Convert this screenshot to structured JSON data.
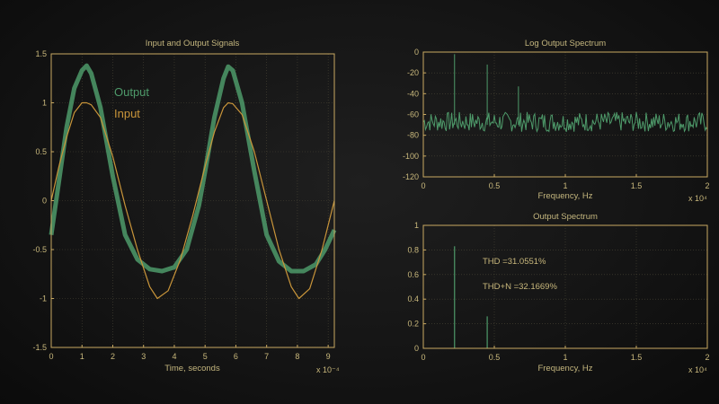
{
  "chart_data": [
    {
      "id": "signals",
      "type": "line",
      "title": "Input and Output Signals",
      "xlabel": "Time, seconds",
      "x_multiplier": "x 10⁻⁴",
      "xlim": [
        0,
        9.2
      ],
      "ylim": [
        -1.5,
        1.5
      ],
      "x_ticks": [
        "0",
        "1",
        "2",
        "3",
        "4",
        "5",
        "6",
        "7",
        "8",
        "9"
      ],
      "y_ticks": [
        "1.5",
        "1",
        "0.5",
        "0",
        "-0.5",
        "-1",
        "-1.5"
      ],
      "grid": true,
      "legend": "upper-left",
      "series": [
        {
          "name": "Output",
          "color": "#4e9a6a",
          "x": [
            0,
            0.25,
            0.5,
            0.75,
            1.0,
            1.15,
            1.3,
            1.6,
            2.0,
            2.4,
            2.8,
            3.2,
            3.6,
            4.0,
            4.4,
            4.8,
            5.0,
            5.3,
            5.6,
            5.75,
            5.9,
            6.2,
            6.6,
            7.0,
            7.4,
            7.8,
            8.2,
            8.6,
            8.9,
            9.2
          ],
          "y": [
            -0.35,
            0.2,
            0.75,
            1.15,
            1.33,
            1.38,
            1.3,
            0.95,
            0.25,
            -0.35,
            -0.6,
            -0.7,
            -0.72,
            -0.68,
            -0.5,
            -0.05,
            0.3,
            0.85,
            1.25,
            1.37,
            1.33,
            1.0,
            0.3,
            -0.35,
            -0.62,
            -0.72,
            -0.72,
            -0.65,
            -0.5,
            -0.3
          ]
        },
        {
          "name": "Input",
          "color": "#c9953a",
          "x": [
            0,
            0.25,
            0.5,
            0.75,
            1.0,
            1.15,
            1.3,
            1.6,
            2.0,
            2.4,
            2.8,
            3.2,
            3.45,
            3.8,
            4.2,
            4.6,
            5.0,
            5.3,
            5.6,
            5.75,
            5.9,
            6.2,
            6.6,
            7.0,
            7.4,
            7.8,
            8.05,
            8.4,
            8.8,
            9.2
          ],
          "y": [
            0.0,
            0.35,
            0.65,
            0.9,
            1.0,
            1.0,
            0.98,
            0.85,
            0.45,
            -0.05,
            -0.5,
            -0.88,
            -1.0,
            -0.92,
            -0.6,
            -0.15,
            0.35,
            0.7,
            0.95,
            1.0,
            0.99,
            0.88,
            0.5,
            0.0,
            -0.5,
            -0.88,
            -1.0,
            -0.9,
            -0.5,
            0.0
          ]
        }
      ]
    },
    {
      "id": "log-spectrum",
      "type": "line",
      "title": "Log Output Spectrum",
      "xlabel": "Frequency, Hz",
      "x_multiplier": "x 10⁴",
      "xlim": [
        0,
        2
      ],
      "ylim": [
        -120,
        0
      ],
      "x_ticks": [
        "0",
        "0.5",
        "1",
        "1.5",
        "2"
      ],
      "y_ticks": [
        "0",
        "-20",
        "-40",
        "-60",
        "-80",
        "-100",
        "-120"
      ],
      "grid": true,
      "noise_floor": -70,
      "noise_spread": 12,
      "series": [
        {
          "name": "",
          "color": "#4e9a6a",
          "x": [
            0.22,
            0.45,
            0.67
          ],
          "y": [
            -2,
            -12,
            -33
          ]
        }
      ]
    },
    {
      "id": "output-spectrum",
      "type": "bar",
      "title": "Output Spectrum",
      "xlabel": "Frequency, Hz",
      "x_multiplier": "x 10⁴",
      "xlim": [
        0,
        2
      ],
      "ylim": [
        0,
        1
      ],
      "x_ticks": [
        "0",
        "0.5",
        "1",
        "1.5",
        "2"
      ],
      "y_ticks": [
        "1",
        "0.8",
        "0.6",
        "0.4",
        "0.2",
        "0"
      ],
      "grid": true,
      "series": [
        {
          "name": "",
          "color": "#4e9a6a",
          "x": [
            0.22,
            0.45
          ],
          "y": [
            0.83,
            0.26
          ]
        }
      ],
      "annotations": [
        "THD =31.0551%",
        "THD+N =32.1669%"
      ]
    }
  ]
}
